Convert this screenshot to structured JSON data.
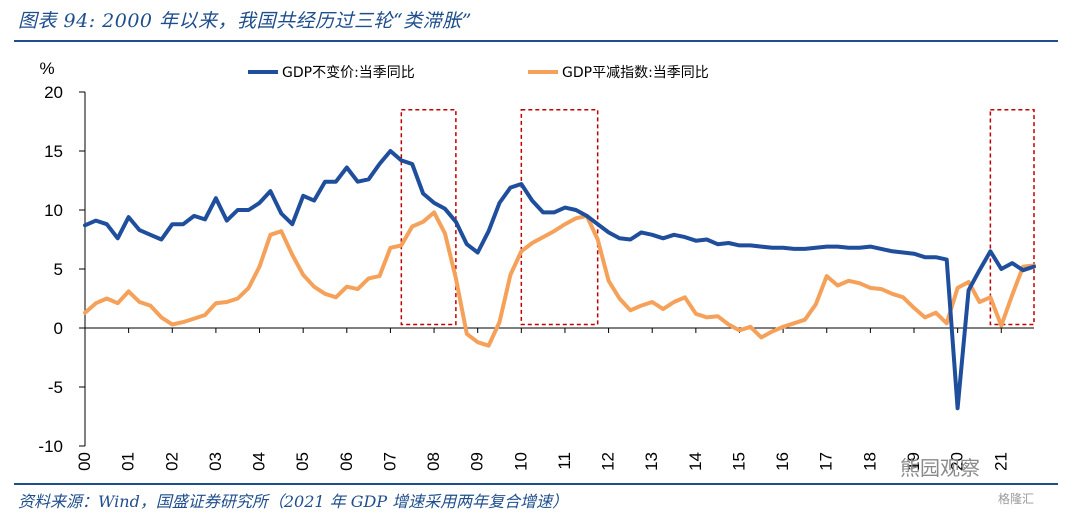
{
  "title": "图表 94:  2000 年以来，我国共经历过三轮“类滞胀”",
  "source": "资料来源：Wind，国盛证券研究所（2021 年 GDP 增速采用两年复合增速）",
  "watermark": "熊园观察",
  "watermark2": "格隆汇",
  "colors": {
    "gdp": "#1f4e9c",
    "deflator": "#f5a15a",
    "box": "#c00000",
    "rule": "#1f4e8c"
  },
  "chart_data": {
    "type": "line",
    "title": "",
    "ylabel": "%",
    "xlabel": "",
    "ylim": [
      -10,
      20
    ],
    "yticks": [
      -10,
      -5,
      0,
      5,
      10,
      15,
      20
    ],
    "xlim": [
      2000.0,
      2021.75
    ],
    "xtick_labels": [
      "00",
      "01",
      "02",
      "03",
      "04",
      "05",
      "06",
      "07",
      "08",
      "09",
      "10",
      "11",
      "12",
      "13",
      "14",
      "15",
      "16",
      "17",
      "18",
      "19",
      "20",
      "21"
    ],
    "legend_position": "top",
    "grid": false,
    "series": [
      {
        "name": "GDP不变价:当季同比",
        "x": [
          2000.0,
          2000.25,
          2000.5,
          2000.75,
          2001.0,
          2001.25,
          2001.5,
          2001.75,
          2002.0,
          2002.25,
          2002.5,
          2002.75,
          2003.0,
          2003.25,
          2003.5,
          2003.75,
          2004.0,
          2004.25,
          2004.5,
          2004.75,
          2005.0,
          2005.25,
          2005.5,
          2005.75,
          2006.0,
          2006.25,
          2006.5,
          2006.75,
          2007.0,
          2007.25,
          2007.5,
          2007.75,
          2008.0,
          2008.25,
          2008.5,
          2008.75,
          2009.0,
          2009.25,
          2009.5,
          2009.75,
          2010.0,
          2010.25,
          2010.5,
          2010.75,
          2011.0,
          2011.25,
          2011.5,
          2011.75,
          2012.0,
          2012.25,
          2012.5,
          2012.75,
          2013.0,
          2013.25,
          2013.5,
          2013.75,
          2014.0,
          2014.25,
          2014.5,
          2014.75,
          2015.0,
          2015.25,
          2015.5,
          2015.75,
          2016.0,
          2016.25,
          2016.5,
          2016.75,
          2017.0,
          2017.25,
          2017.5,
          2017.75,
          2018.0,
          2018.25,
          2018.5,
          2018.75,
          2019.0,
          2019.25,
          2019.5,
          2019.75,
          2020.0,
          2020.25,
          2020.5,
          2020.75,
          2021.0,
          2021.25,
          2021.5,
          2021.75
        ],
        "values": [
          8.7,
          9.1,
          8.8,
          7.6,
          9.4,
          8.3,
          7.9,
          7.5,
          8.8,
          8.8,
          9.5,
          9.2,
          11.0,
          9.1,
          10.0,
          10.0,
          10.6,
          11.6,
          9.7,
          8.8,
          11.2,
          10.8,
          12.4,
          12.4,
          13.6,
          12.4,
          12.6,
          13.9,
          15.0,
          14.2,
          13.9,
          11.4,
          10.6,
          10.1,
          9.0,
          7.1,
          6.4,
          8.2,
          10.6,
          11.9,
          12.2,
          10.8,
          9.8,
          9.8,
          10.2,
          10.0,
          9.5,
          8.8,
          8.1,
          7.6,
          7.5,
          8.1,
          7.9,
          7.6,
          7.9,
          7.7,
          7.4,
          7.5,
          7.1,
          7.2,
          7.0,
          7.0,
          6.9,
          6.8,
          6.8,
          6.7,
          6.7,
          6.8,
          6.9,
          6.9,
          6.8,
          6.8,
          6.9,
          6.7,
          6.5,
          6.4,
          6.3,
          6.0,
          6.0,
          5.8,
          -6.8,
          3.2,
          4.9,
          6.5,
          5.0,
          5.5,
          4.9,
          5.2
        ]
      },
      {
        "name": "GDP平减指数:当季同比",
        "x": [
          2000.0,
          2000.25,
          2000.5,
          2000.75,
          2001.0,
          2001.25,
          2001.5,
          2001.75,
          2002.0,
          2002.25,
          2002.5,
          2002.75,
          2003.0,
          2003.25,
          2003.5,
          2003.75,
          2004.0,
          2004.25,
          2004.5,
          2004.75,
          2005.0,
          2005.25,
          2005.5,
          2005.75,
          2006.0,
          2006.25,
          2006.5,
          2006.75,
          2007.0,
          2007.25,
          2007.5,
          2007.75,
          2008.0,
          2008.25,
          2008.5,
          2008.75,
          2009.0,
          2009.25,
          2009.5,
          2009.75,
          2010.0,
          2010.25,
          2010.5,
          2010.75,
          2011.0,
          2011.25,
          2011.5,
          2011.75,
          2012.0,
          2012.25,
          2012.5,
          2012.75,
          2013.0,
          2013.25,
          2013.5,
          2013.75,
          2014.0,
          2014.25,
          2014.5,
          2014.75,
          2015.0,
          2015.25,
          2015.5,
          2015.75,
          2016.0,
          2016.25,
          2016.5,
          2016.75,
          2017.0,
          2017.25,
          2017.5,
          2017.75,
          2018.0,
          2018.25,
          2018.5,
          2018.75,
          2019.0,
          2019.25,
          2019.5,
          2019.75,
          2020.0,
          2020.25,
          2020.5,
          2020.75,
          2021.0,
          2021.25,
          2021.5,
          2021.75
        ],
        "values": [
          1.3,
          2.1,
          2.5,
          2.1,
          3.1,
          2.2,
          1.9,
          0.9,
          0.3,
          0.5,
          0.8,
          1.1,
          2.1,
          2.2,
          2.5,
          3.4,
          5.2,
          7.9,
          8.2,
          6.2,
          4.5,
          3.5,
          2.9,
          2.6,
          3.5,
          3.3,
          4.2,
          4.4,
          6.8,
          7.0,
          8.6,
          9.0,
          9.8,
          8.0,
          4.2,
          -0.5,
          -1.2,
          -1.5,
          0.5,
          4.5,
          6.5,
          7.2,
          7.7,
          8.2,
          8.8,
          9.3,
          9.5,
          7.5,
          4.0,
          2.5,
          1.5,
          1.9,
          2.2,
          1.6,
          2.2,
          2.6,
          1.2,
          0.9,
          1.0,
          0.3,
          -0.2,
          0.1,
          -0.8,
          -0.3,
          0.1,
          0.4,
          0.7,
          2.0,
          4.4,
          3.6,
          4.0,
          3.8,
          3.4,
          3.3,
          2.9,
          2.6,
          1.7,
          0.9,
          1.3,
          0.4,
          3.4,
          3.9,
          2.2,
          2.6,
          0.2,
          2.8,
          5.2,
          5.3
        ]
      }
    ],
    "highlight_ranges": [
      [
        2007.25,
        2008.5
      ],
      [
        2010.0,
        2011.75
      ],
      [
        2020.75,
        2021.75
      ]
    ]
  }
}
